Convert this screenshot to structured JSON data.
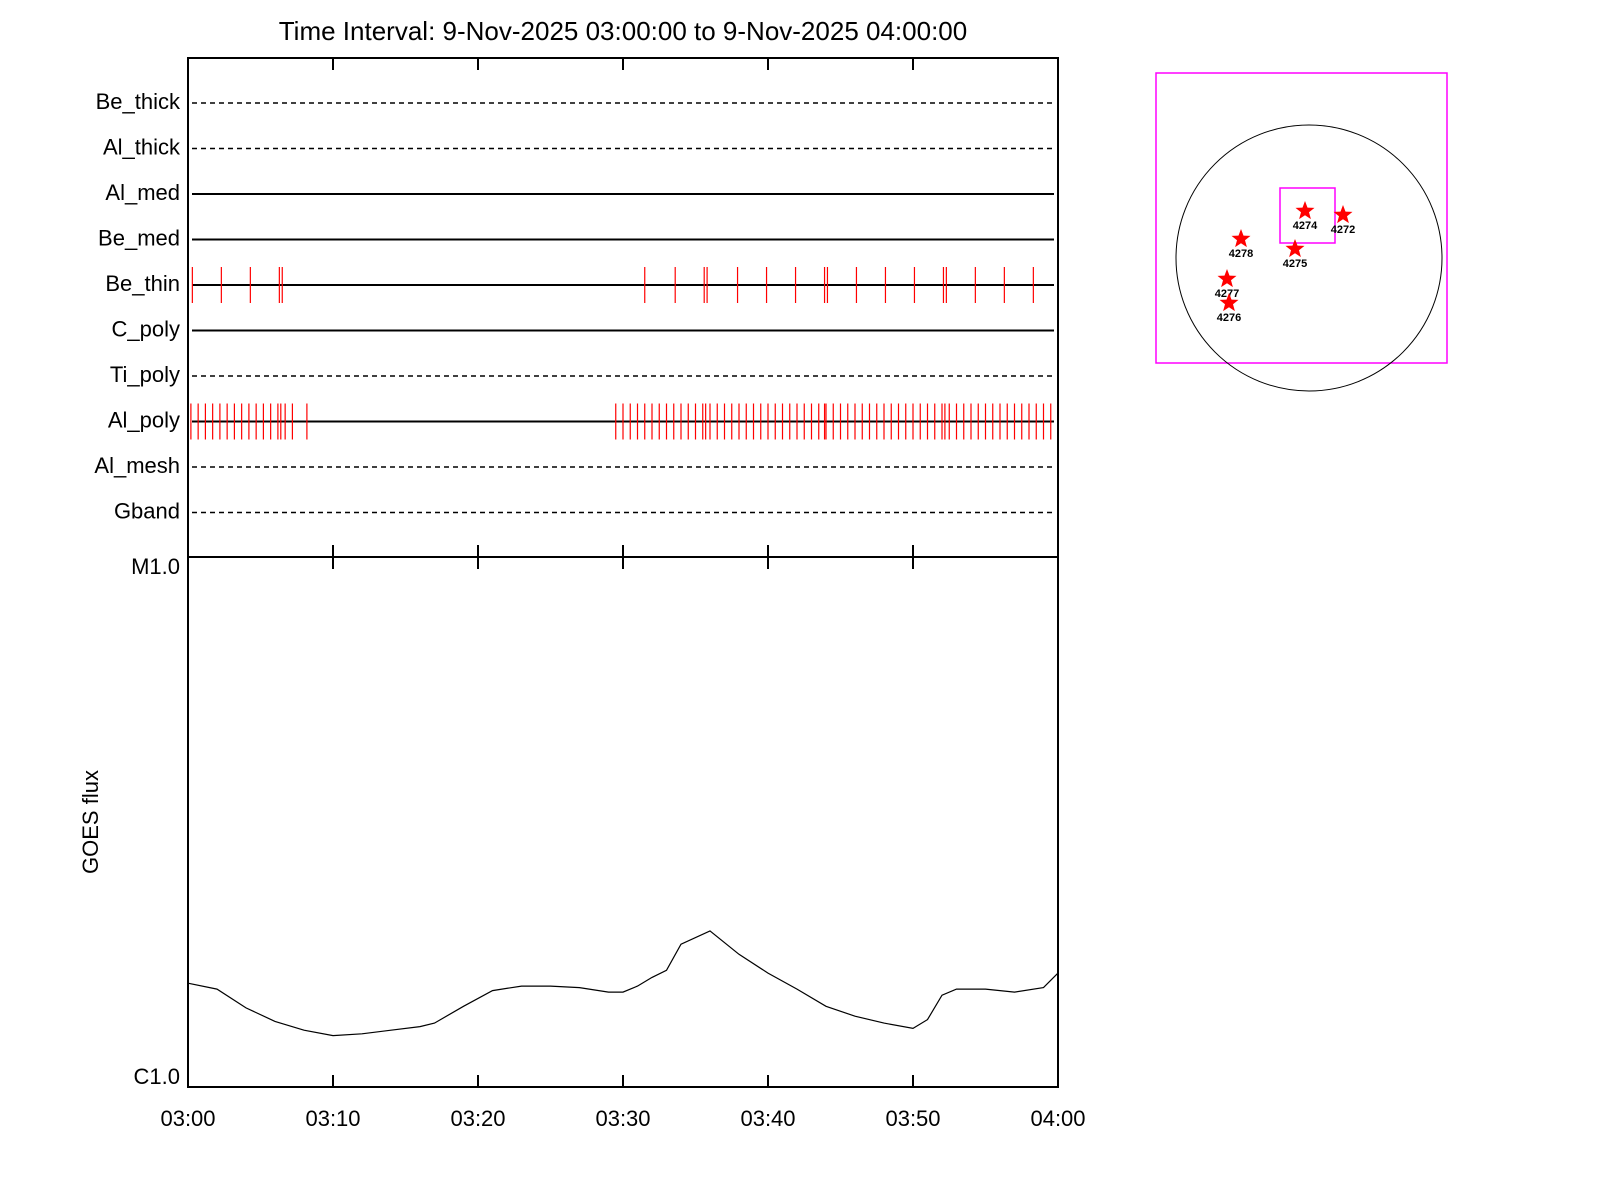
{
  "chart_data": [
    {
      "type": "events",
      "title": "Time Interval:  9-Nov-2025 03:00:00 to  9-Nov-2025 04:00:00",
      "categories": [
        "Be_thick",
        "Al_thick",
        "Al_med",
        "Be_med",
        "Be_thin",
        "C_poly",
        "Ti_poly",
        "Al_poly",
        "Al_mesh",
        "Gband"
      ],
      "linestyles": [
        "dashed",
        "dashed",
        "solid",
        "solid",
        "solid",
        "solid",
        "dashed",
        "solid",
        "dashed",
        "dashed"
      ],
      "color": "#ff0000",
      "events": [
        [],
        [],
        [],
        [],
        [
          0.3,
          2.3,
          4.3,
          6.3,
          6.5,
          31.5,
          33.6,
          35.6,
          35.8,
          37.9,
          39.9,
          41.9,
          43.9,
          44.1,
          46.1,
          48.1,
          50.1,
          52.1,
          52.3,
          54.3,
          56.3,
          58.3
        ],
        [],
        [],
        [
          0.2,
          0.7,
          1.2,
          1.7,
          2.2,
          2.7,
          3.2,
          3.7,
          4.2,
          4.7,
          5.2,
          5.7,
          6.2,
          6.4,
          6.7,
          7.2,
          8.2,
          29.5,
          30.0,
          30.5,
          31.0,
          31.5,
          32.0,
          32.5,
          33.0,
          33.5,
          34.0,
          34.5,
          35.0,
          35.5,
          35.7,
          36.0,
          36.5,
          37.0,
          37.5,
          38.0,
          38.5,
          39.0,
          39.5,
          40.0,
          40.5,
          41.0,
          41.5,
          42.0,
          42.5,
          43.0,
          43.5,
          43.9,
          44.0,
          44.5,
          45.0,
          45.5,
          46.0,
          46.5,
          47.0,
          47.5,
          48.0,
          48.5,
          49.0,
          49.5,
          50.0,
          50.5,
          51.0,
          51.5,
          52.0,
          52.2,
          52.5,
          53.0,
          53.5,
          54.0,
          54.5,
          55.0,
          55.5,
          56.0,
          56.5,
          57.0,
          57.5,
          58.0,
          58.5,
          59.0,
          59.5,
          60.0
        ],
        [],
        []
      ],
      "xlim": [
        0,
        60
      ],
      "xticks": [
        0,
        10,
        20,
        30,
        40,
        50,
        60
      ]
    },
    {
      "type": "line",
      "ylabel": "GOES flux",
      "x": [
        0,
        2,
        4,
        6,
        8,
        10,
        12,
        14,
        16,
        17,
        19,
        21,
        23,
        25,
        27,
        29,
        30,
        31,
        32,
        33,
        34,
        36,
        38,
        40,
        42,
        44,
        46,
        48,
        50,
        51,
        52,
        53,
        55,
        57,
        59,
        60
      ],
      "values": [
        1.57e-06,
        1.53e-06,
        1.41e-06,
        1.33e-06,
        1.28e-06,
        1.25e-06,
        1.26e-06,
        1.28e-06,
        1.3e-06,
        1.32e-06,
        1.42e-06,
        1.52e-06,
        1.55e-06,
        1.55e-06,
        1.54e-06,
        1.51e-06,
        1.51e-06,
        1.55e-06,
        1.61e-06,
        1.66e-06,
        1.86e-06,
        1.97e-06,
        1.78e-06,
        1.64e-06,
        1.53e-06,
        1.42e-06,
        1.36e-06,
        1.32e-06,
        1.29e-06,
        1.34e-06,
        1.49e-06,
        1.53e-06,
        1.53e-06,
        1.51e-06,
        1.54e-06,
        1.64e-06
      ],
      "color": "#000000",
      "log": true,
      "ylim": [
        1e-06,
        1e-05
      ],
      "yticks": [
        {
          "value": 1e-06,
          "label": "C1.0"
        },
        {
          "value": 1e-05,
          "label": "M1.0"
        }
      ],
      "xlim": [
        0,
        60
      ],
      "xticks": [
        {
          "value": 0,
          "label": "03:00"
        },
        {
          "value": 10,
          "label": "03:10"
        },
        {
          "value": 20,
          "label": "03:20"
        },
        {
          "value": 30,
          "label": "03:30"
        },
        {
          "value": 40,
          "label": "03:40"
        },
        {
          "value": 50,
          "label": "03:50"
        },
        {
          "value": 60,
          "label": "04:00"
        }
      ]
    }
  ],
  "map": {
    "regions": [
      "4274",
      "4272",
      "4278",
      "4275",
      "4277",
      "4276"
    ]
  }
}
